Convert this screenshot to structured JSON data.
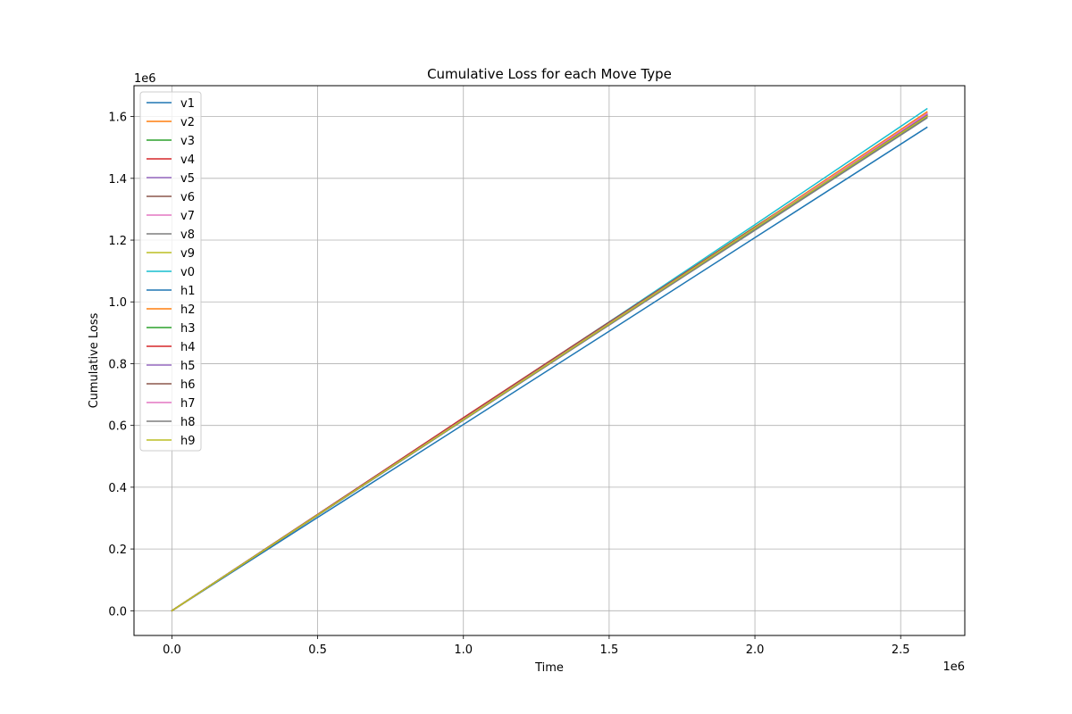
{
  "chart_data": {
    "type": "line",
    "title": "Cumulative Loss for each Move Type",
    "xlabel": "Time",
    "ylabel": "Cumulative Loss",
    "x_offset_text": "1e6",
    "y_offset_text": "1e6",
    "xlim": [
      -130000,
      2720000
    ],
    "ylim": [
      -80000,
      1700000
    ],
    "xticks": [
      0,
      0.5,
      1.0,
      1.5,
      2.0,
      2.5
    ],
    "xtick_labels": [
      "0.0",
      "0.5",
      "1.0",
      "1.5",
      "2.0",
      "2.5"
    ],
    "yticks": [
      0,
      0.2,
      0.4,
      0.6,
      0.8,
      1.0,
      1.2,
      1.4,
      1.6
    ],
    "ytick_labels": [
      "0.0",
      "0.2",
      "0.4",
      "0.6",
      "0.8",
      "1.0",
      "1.2",
      "1.4",
      "1.6"
    ],
    "grid": true,
    "legend_position": "upper-left",
    "series": [
      {
        "name": "v1",
        "color": "#1f77b4",
        "x": [
          0,
          500000,
          1000000,
          1500000,
          2000000,
          2590000
        ],
        "y": [
          0,
          302000,
          603000,
          905000,
          1208000,
          1565000
        ]
      },
      {
        "name": "v2",
        "color": "#ff7f0e",
        "x": [
          0,
          500000,
          1000000,
          1500000,
          2000000,
          2590000
        ],
        "y": [
          0,
          310000,
          620000,
          930000,
          1240000,
          1610000
        ]
      },
      {
        "name": "v3",
        "color": "#2ca02c",
        "x": [
          0,
          500000,
          1000000,
          1500000,
          2000000,
          2590000
        ],
        "y": [
          0,
          310000,
          621000,
          932000,
          1243000,
          1605000
        ]
      },
      {
        "name": "v4",
        "color": "#d62728",
        "x": [
          0,
          500000,
          1000000,
          1500000,
          2000000,
          2590000
        ],
        "y": [
          0,
          312000,
          625000,
          935000,
          1240000,
          1600000
        ]
      },
      {
        "name": "v5",
        "color": "#9467bd",
        "x": [
          0,
          500000,
          1000000,
          1500000,
          2000000,
          2590000
        ],
        "y": [
          0,
          311000,
          621000,
          931000,
          1241000,
          1608000
        ]
      },
      {
        "name": "v6",
        "color": "#8c564b",
        "x": [
          0,
          500000,
          1000000,
          1500000,
          2000000,
          2590000
        ],
        "y": [
          0,
          311000,
          622000,
          932000,
          1238000,
          1604000
        ]
      },
      {
        "name": "v7",
        "color": "#e377c2",
        "x": [
          0,
          500000,
          1000000,
          1500000,
          2000000,
          2590000
        ],
        "y": [
          0,
          310000,
          620000,
          930000,
          1239000,
          1612000
        ]
      },
      {
        "name": "v8",
        "color": "#7f7f7f",
        "x": [
          0,
          500000,
          1000000,
          1500000,
          2000000,
          2590000
        ],
        "y": [
          0,
          309000,
          618000,
          927000,
          1236000,
          1600000
        ]
      },
      {
        "name": "v9",
        "color": "#bcbd22",
        "x": [
          0,
          500000,
          1000000,
          1500000,
          2000000,
          2590000
        ],
        "y": [
          0,
          310000,
          619000,
          928000,
          1237000,
          1602000
        ]
      },
      {
        "name": "v0",
        "color": "#17becf",
        "x": [
          0,
          500000,
          1000000,
          1500000,
          2000000,
          2590000
        ],
        "y": [
          0,
          312000,
          623000,
          935000,
          1250000,
          1625000
        ]
      },
      {
        "name": "h1",
        "color": "#1f77b4",
        "x": [
          0,
          500000,
          1000000,
          1500000,
          2000000,
          2590000
        ],
        "y": [
          0,
          309000,
          617000,
          926000,
          1235000,
          1597000
        ]
      },
      {
        "name": "h2",
        "color": "#ff7f0e",
        "x": [
          0,
          500000,
          1000000,
          1500000,
          2000000,
          2590000
        ],
        "y": [
          0,
          311000,
          621000,
          932000,
          1242000,
          1615000
        ]
      },
      {
        "name": "h3",
        "color": "#2ca02c",
        "x": [
          0,
          500000,
          1000000,
          1500000,
          2000000,
          2590000
        ],
        "y": [
          0,
          311000,
          620000,
          930000,
          1240000,
          1606000
        ]
      },
      {
        "name": "h4",
        "color": "#d62728",
        "x": [
          0,
          500000,
          1000000,
          1500000,
          2000000,
          2590000
        ],
        "y": [
          0,
          312000,
          624000,
          934000,
          1241000,
          1603000
        ]
      },
      {
        "name": "h5",
        "color": "#9467bd",
        "x": [
          0,
          500000,
          1000000,
          1500000,
          2000000,
          2590000
        ],
        "y": [
          0,
          310000,
          620000,
          931000,
          1240000,
          1607000
        ]
      },
      {
        "name": "h6",
        "color": "#8c564b",
        "x": [
          0,
          500000,
          1000000,
          1500000,
          2000000,
          2590000
        ],
        "y": [
          0,
          311000,
          622000,
          933000,
          1240000,
          1602000
        ]
      },
      {
        "name": "h7",
        "color": "#e377c2",
        "x": [
          0,
          500000,
          1000000,
          1500000,
          2000000,
          2590000
        ],
        "y": [
          0,
          310000,
          620000,
          930000,
          1239000,
          1610000
        ]
      },
      {
        "name": "h8",
        "color": "#7f7f7f",
        "x": [
          0,
          500000,
          1000000,
          1500000,
          2000000,
          2590000
        ],
        "y": [
          0,
          309000,
          617000,
          925000,
          1232000,
          1595000
        ]
      },
      {
        "name": "h9",
        "color": "#bcbd22",
        "x": [
          0,
          500000,
          1000000,
          1500000,
          2000000,
          2590000
        ],
        "y": [
          0,
          310000,
          619000,
          929000,
          1238000,
          1601000
        ]
      }
    ]
  }
}
